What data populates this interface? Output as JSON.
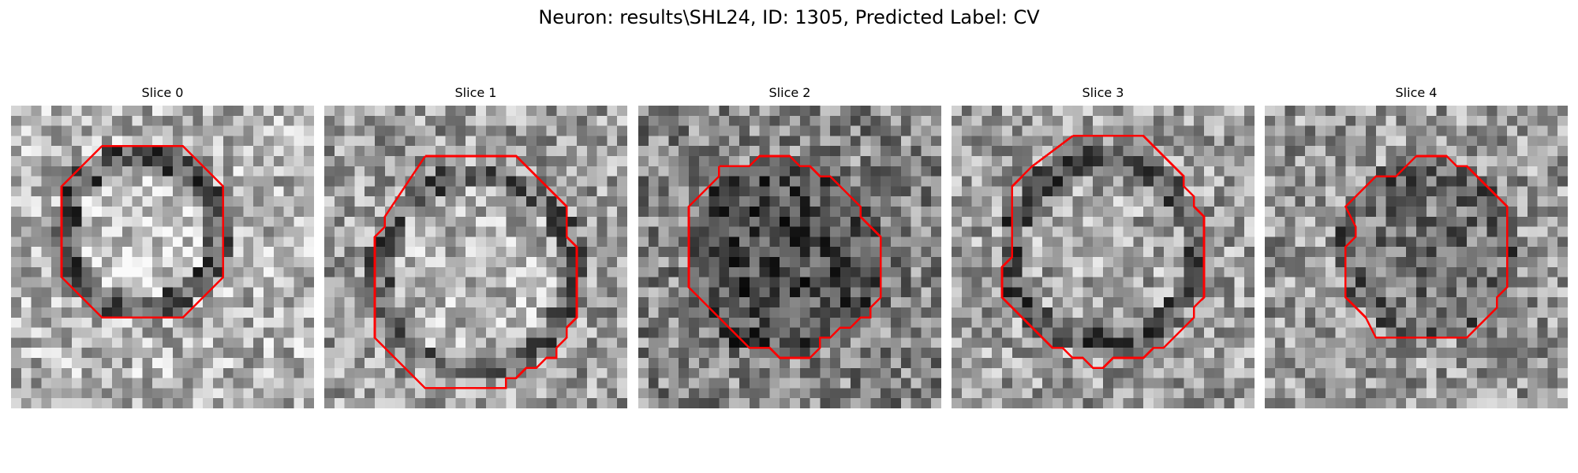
{
  "figure": {
    "title": "Neuron: results\\SHL24, ID: 1305, Predicted Label: CV"
  },
  "panels": [
    {
      "label": "Slice 0"
    },
    {
      "label": "Slice 1"
    },
    {
      "label": "Slice 2"
    },
    {
      "label": "Slice 3"
    },
    {
      "label": "Slice 4"
    }
  ],
  "colors": {
    "contour": "#ff0000",
    "background": "#ffffff"
  }
}
